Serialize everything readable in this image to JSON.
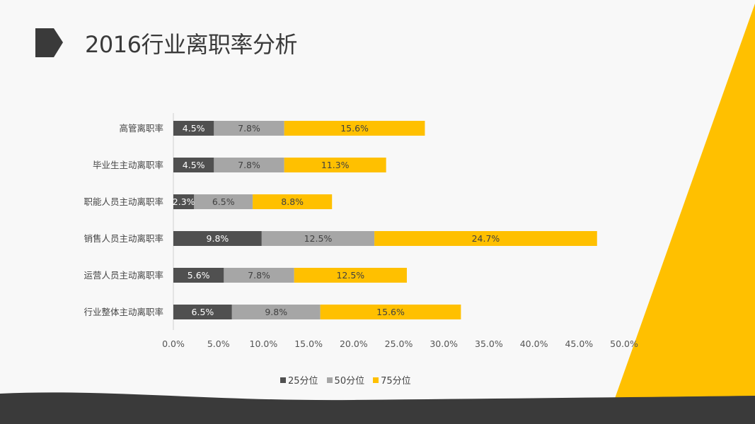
{
  "title": "2016行业离职率分析",
  "colors": {
    "p25": "#505050",
    "p50": "#a6a6a6",
    "p75": "#ffc000",
    "accent": "#ffc000",
    "dark": "#3a3a3a"
  },
  "chart_data": {
    "type": "bar",
    "orientation": "horizontal",
    "stacked": true,
    "categories": [
      "高管离职率",
      "毕业生主动离职率",
      "职能人员主动离职率",
      "销售人员主动离职率",
      "运营人员主动离职率",
      "行业整体主动离职率"
    ],
    "series": [
      {
        "name": "25分位",
        "values": [
          4.5,
          4.5,
          2.3,
          9.8,
          5.6,
          6.5
        ],
        "labels": [
          "4.5%",
          "4.5%",
          "2.3%",
          "9.8%",
          "5.6%",
          "6.5%"
        ]
      },
      {
        "name": "50分位",
        "values": [
          7.8,
          7.8,
          6.5,
          12.5,
          7.8,
          9.8
        ],
        "labels": [
          "7.8%",
          "7.8%",
          "6.5%",
          "12.5%",
          "7.8%",
          "9.8%"
        ]
      },
      {
        "name": "75分位",
        "values": [
          15.6,
          11.3,
          8.8,
          24.7,
          12.5,
          15.6
        ],
        "labels": [
          "15.6%",
          "11.3%",
          "8.8%",
          "24.7%",
          "12.5%",
          "15.6%"
        ]
      }
    ],
    "xlim": [
      0,
      50
    ],
    "ticks": [
      "0.0%",
      "5.0%",
      "10.0%",
      "15.0%",
      "20.0%",
      "25.0%",
      "30.0%",
      "35.0%",
      "40.0%",
      "45.0%",
      "50.0%"
    ],
    "legend_position": "bottom"
  }
}
